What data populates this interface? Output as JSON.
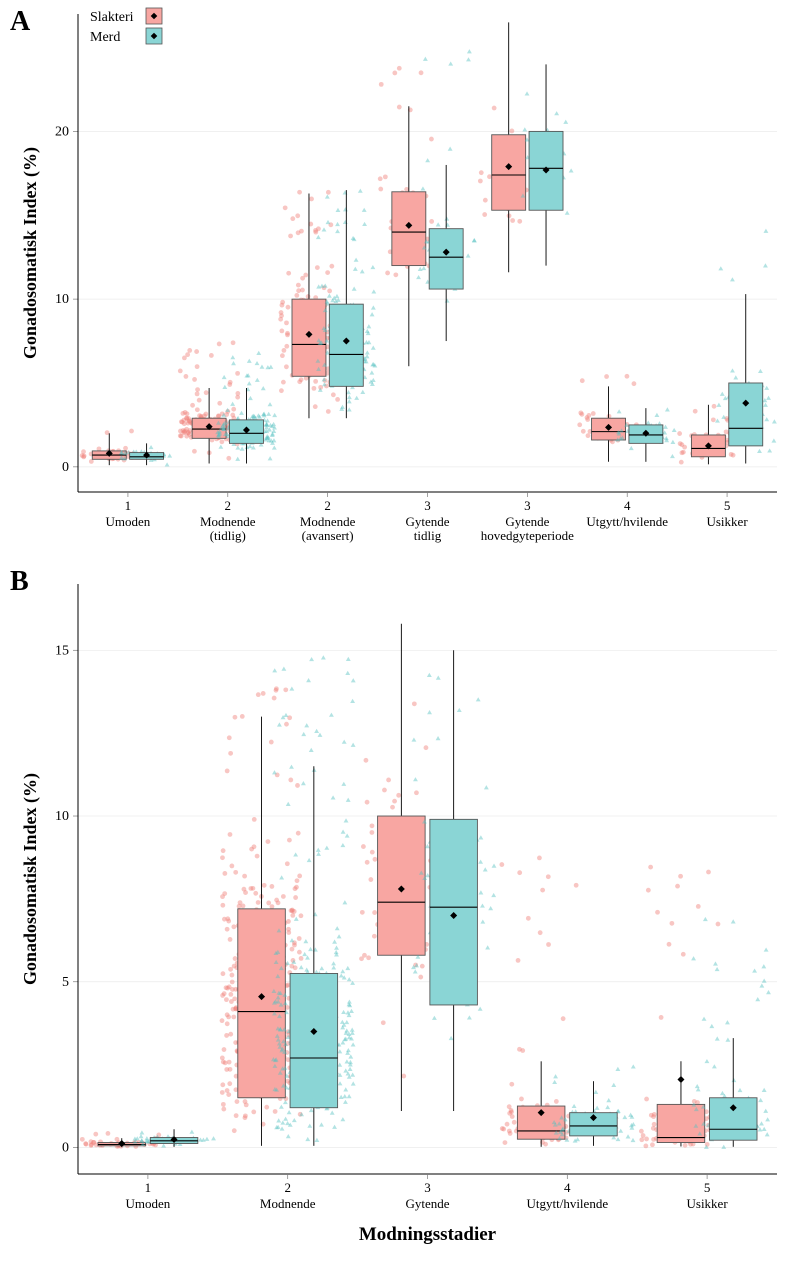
{
  "colors": {
    "slakteri_fill": "#f8a6a2",
    "slakteri_stroke": "#6a6a6a",
    "merd_fill": "#8ad5d5",
    "merd_stroke": "#6a6a6a",
    "mean_point": "#000000",
    "jitter_slakteri": "#f0807a",
    "jitter_merd": "#57c0c0",
    "background": "#ffffff",
    "grid": "#ebebeb",
    "axis": "#000000",
    "tick": "#333333"
  },
  "fonts": {
    "panel_label_pt": 20,
    "axis_title_pt": 15,
    "tick_label_pt": 12,
    "legend_pt": 12
  },
  "legend": {
    "items": [
      {
        "label": "Slakteri",
        "fill": "#f8a6a2",
        "marker": "diamond"
      },
      {
        "label": "Merd",
        "fill": "#8ad5d5",
        "marker": "diamond"
      }
    ],
    "position": "top-left-inside"
  },
  "panelA": {
    "type": "grouped-boxplot-with-jitter",
    "label": "A",
    "y_axis": {
      "title": "Gonadosomatisk Index (%)",
      "lim": [
        -1.5,
        27
      ],
      "ticks": [
        0,
        10,
        20
      ]
    },
    "x_axis": {
      "categories": [
        {
          "num": "1",
          "name": "Umoden"
        },
        {
          "num": "2",
          "name": "Modnende\n(tidlig)"
        },
        {
          "num": "2",
          "name": "Modnende\n(avansert)"
        },
        {
          "num": "3",
          "name": "Gytende\ntidlig"
        },
        {
          "num": "3",
          "name": "Gytende\nhovedgyteperiode"
        },
        {
          "num": "4",
          "name": "Utgytt/hvilende"
        },
        {
          "num": "5",
          "name": "Usikker"
        }
      ]
    },
    "groups": [
      "Slakteri",
      "Merd"
    ],
    "data": [
      {
        "category": 0,
        "boxes": [
          {
            "group": "Slakteri",
            "low": 0.1,
            "q1": 0.45,
            "med": 0.7,
            "q3": 0.95,
            "high": 2.0,
            "mean": 0.8,
            "n_jitter": 30,
            "jitter_range": [
              0.0,
              2.2
            ]
          },
          {
            "group": "Merd",
            "low": 0.1,
            "q1": 0.45,
            "med": 0.6,
            "q3": 0.85,
            "high": 1.4,
            "mean": 0.7,
            "n_jitter": 30,
            "jitter_range": [
              0.0,
              1.6
            ]
          }
        ]
      },
      {
        "category": 1,
        "boxes": [
          {
            "group": "Slakteri",
            "low": 0.2,
            "q1": 1.7,
            "med": 2.25,
            "q3": 2.9,
            "high": 4.7,
            "mean": 2.4,
            "n_jitter": 160,
            "jitter_range": [
              0.1,
              7.5
            ]
          },
          {
            "group": "Merd",
            "low": 0.2,
            "q1": 1.4,
            "med": 2.0,
            "q3": 2.8,
            "high": 4.7,
            "mean": 2.2,
            "n_jitter": 160,
            "jitter_range": [
              0.1,
              6.8
            ]
          }
        ]
      },
      {
        "category": 2,
        "boxes": [
          {
            "group": "Slakteri",
            "low": 2.9,
            "q1": 5.4,
            "med": 7.3,
            "q3": 10.0,
            "high": 16.3,
            "mean": 7.9,
            "n_jitter": 140,
            "jitter_range": [
              2.8,
              16.5
            ]
          },
          {
            "group": "Merd",
            "low": 2.9,
            "q1": 4.8,
            "med": 6.7,
            "q3": 9.7,
            "high": 16.5,
            "mean": 7.5,
            "n_jitter": 140,
            "jitter_range": [
              2.8,
              16.5
            ]
          }
        ]
      },
      {
        "category": 3,
        "boxes": [
          {
            "group": "Slakteri",
            "low": 6.0,
            "q1": 12.0,
            "med": 14.0,
            "q3": 16.4,
            "high": 21.5,
            "mean": 14.4,
            "n_jitter": 35,
            "jitter_range": [
              6.0,
              25.0
            ]
          },
          {
            "group": "Merd",
            "low": 7.5,
            "q1": 10.6,
            "med": 12.5,
            "q3": 14.2,
            "high": 18.0,
            "mean": 12.8,
            "n_jitter": 35,
            "jitter_range": [
              7.5,
              24.8
            ]
          }
        ]
      },
      {
        "category": 4,
        "boxes": [
          {
            "group": "Slakteri",
            "low": 11.6,
            "q1": 15.3,
            "med": 17.4,
            "q3": 19.8,
            "high": 26.5,
            "mean": 17.9,
            "n_jitter": 20,
            "jitter_range": [
              11.6,
              26.5
            ]
          },
          {
            "group": "Merd",
            "low": 12.0,
            "q1": 15.3,
            "med": 17.8,
            "q3": 20.0,
            "high": 24.0,
            "mean": 17.7,
            "n_jitter": 20,
            "jitter_range": [
              12.0,
              24.0
            ]
          }
        ]
      },
      {
        "category": 5,
        "boxes": [
          {
            "group": "Slakteri",
            "low": 0.3,
            "q1": 1.6,
            "med": 2.1,
            "q3": 2.9,
            "high": 4.8,
            "mean": 2.35,
            "n_jitter": 40,
            "jitter_range": [
              0.2,
              5.5
            ]
          },
          {
            "group": "Merd",
            "low": 0.3,
            "q1": 1.4,
            "med": 1.9,
            "q3": 2.5,
            "high": 3.5,
            "mean": 2.0,
            "n_jitter": 40,
            "jitter_range": [
              0.2,
              3.6
            ]
          }
        ]
      },
      {
        "category": 6,
        "boxes": [
          {
            "group": "Slakteri",
            "low": 0.15,
            "q1": 0.6,
            "med": 1.1,
            "q3": 1.9,
            "high": 3.7,
            "mean": 1.25,
            "n_jitter": 45,
            "jitter_range": [
              0.1,
              5.0
            ]
          },
          {
            "group": "Merd",
            "low": 0.2,
            "q1": 1.25,
            "med": 2.3,
            "q3": 5.0,
            "high": 10.3,
            "mean": 3.8,
            "n_jitter": 45,
            "jitter_range": [
              0.2,
              18.2
            ]
          }
        ]
      }
    ]
  },
  "panelB": {
    "type": "grouped-boxplot-with-jitter",
    "label": "B",
    "y_axis": {
      "title": "Gonadosomatisk Index (%)",
      "lim": [
        -0.8,
        17
      ],
      "ticks": [
        0,
        5,
        10,
        15
      ]
    },
    "x_axis": {
      "title": "Modningsstadier",
      "categories": [
        {
          "num": "1",
          "name": "Umoden"
        },
        {
          "num": "2",
          "name": "Modnende"
        },
        {
          "num": "3",
          "name": "Gytende"
        },
        {
          "num": "4",
          "name": "Utgytt/hvilende"
        },
        {
          "num": "5",
          "name": "Usikker"
        }
      ]
    },
    "groups": [
      "Slakteri",
      "Merd"
    ],
    "data": [
      {
        "category": 0,
        "boxes": [
          {
            "group": "Slakteri",
            "low": 0.01,
            "q1": 0.05,
            "med": 0.09,
            "q3": 0.15,
            "high": 0.28,
            "mean": 0.12,
            "n_jitter": 40,
            "jitter_range": [
              0.0,
              0.45
            ]
          },
          {
            "group": "Merd",
            "low": 0.02,
            "q1": 0.12,
            "med": 0.2,
            "q3": 0.3,
            "high": 0.55,
            "mean": 0.24,
            "n_jitter": 40,
            "jitter_range": [
              0.0,
              0.7
            ]
          }
        ]
      },
      {
        "category": 1,
        "boxes": [
          {
            "group": "Slakteri",
            "low": 0.05,
            "q1": 1.5,
            "med": 4.1,
            "q3": 7.2,
            "high": 13.0,
            "mean": 4.55,
            "n_jitter": 300,
            "jitter_range": [
              0.02,
              14.0
            ]
          },
          {
            "group": "Merd",
            "low": 0.05,
            "q1": 1.2,
            "med": 2.7,
            "q3": 5.25,
            "high": 11.5,
            "mean": 3.5,
            "n_jitter": 300,
            "jitter_range": [
              0.02,
              14.8
            ]
          }
        ]
      },
      {
        "category": 2,
        "boxes": [
          {
            "group": "Slakteri",
            "low": 1.1,
            "q1": 5.8,
            "med": 7.4,
            "q3": 10.0,
            "high": 15.8,
            "mean": 7.8,
            "n_jitter": 60,
            "jitter_range": [
              1.1,
              16.0
            ]
          },
          {
            "group": "Merd",
            "low": 1.1,
            "q1": 4.3,
            "med": 7.25,
            "q3": 9.9,
            "high": 15.0,
            "mean": 7.0,
            "n_jitter": 60,
            "jitter_range": [
              1.1,
              15.0
            ]
          }
        ]
      },
      {
        "category": 3,
        "boxes": [
          {
            "group": "Slakteri",
            "low": 0.02,
            "q1": 0.25,
            "med": 0.5,
            "q3": 1.25,
            "high": 2.6,
            "mean": 1.05,
            "n_jitter": 70,
            "jitter_range": [
              0.0,
              9.0
            ]
          },
          {
            "group": "Merd",
            "low": 0.05,
            "q1": 0.35,
            "med": 0.65,
            "q3": 1.05,
            "high": 2.0,
            "mean": 0.9,
            "n_jitter": 70,
            "jitter_range": [
              0.0,
              2.5
            ]
          }
        ]
      },
      {
        "category": 4,
        "boxes": [
          {
            "group": "Slakteri",
            "low": 0.03,
            "q1": 0.15,
            "med": 0.3,
            "q3": 1.3,
            "high": 2.6,
            "mean": 2.05,
            "n_jitter": 70,
            "jitter_range": [
              0.0,
              9.0
            ]
          },
          {
            "group": "Merd",
            "low": 0.02,
            "q1": 0.22,
            "med": 0.55,
            "q3": 1.5,
            "high": 3.3,
            "mean": 1.2,
            "n_jitter": 70,
            "jitter_range": [
              0.0,
              7.2
            ]
          }
        ]
      }
    ]
  }
}
